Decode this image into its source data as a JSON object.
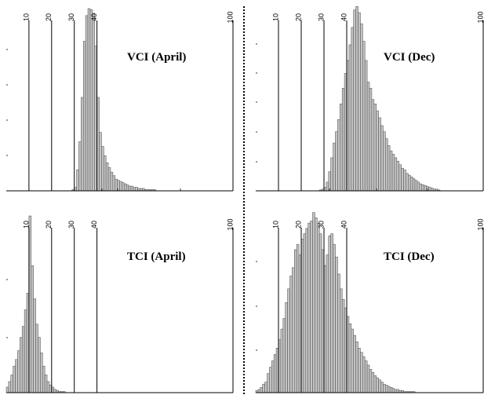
{
  "chart_data": [
    {
      "type": "bar",
      "title": "VCI (April)",
      "xlim": [
        0,
        100
      ],
      "reference_lines": [
        10,
        20,
        30,
        40,
        100
      ],
      "bin_width": 1,
      "x_start": 29,
      "values": [
        1,
        3,
        18,
        42,
        80,
        128,
        150,
        156,
        155,
        152,
        124,
        80,
        50,
        38,
        30,
        24,
        20,
        16,
        13,
        10,
        9,
        8,
        7,
        6,
        5,
        4,
        4,
        3,
        3,
        2,
        2,
        2,
        1,
        1,
        1,
        1,
        1
      ]
    },
    {
      "type": "bar",
      "title": "VCI (Dec)",
      "xlim": [
        0,
        100
      ],
      "reference_lines": [
        10,
        20,
        30,
        40,
        100
      ],
      "bin_width": 1,
      "x_start": 28,
      "values": [
        1,
        2,
        4,
        10,
        22,
        38,
        55,
        68,
        82,
        100,
        118,
        135,
        150,
        168,
        188,
        208,
        212,
        205,
        192,
        172,
        150,
        125,
        118,
        105,
        100,
        92,
        84,
        75,
        68,
        60,
        52,
        46,
        42,
        38,
        34,
        30,
        26,
        24,
        20,
        18,
        16,
        14,
        12,
        10,
        8,
        7,
        6,
        5,
        4,
        3,
        2,
        2,
        1
      ]
    },
    {
      "type": "bar",
      "title": "TCI (April)",
      "xlim": [
        0,
        100
      ],
      "reference_lines": [
        10,
        20,
        30,
        40,
        100
      ],
      "bin_width": 1,
      "x_start": 0,
      "values": [
        5,
        10,
        16,
        24,
        30,
        38,
        50,
        60,
        75,
        90,
        160,
        115,
        85,
        62,
        50,
        36,
        24,
        16,
        10,
        7,
        5,
        3,
        2,
        1,
        1,
        1
      ]
    },
    {
      "type": "bar",
      "title": "TCI (Dec)",
      "xlim": [
        0,
        100
      ],
      "reference_lines": [
        10,
        20,
        30,
        40,
        100
      ],
      "bin_width": 1,
      "x_start": 0,
      "values": [
        2,
        3,
        5,
        8,
        10,
        18,
        24,
        30,
        36,
        42,
        50,
        60,
        70,
        85,
        98,
        110,
        118,
        135,
        140,
        130,
        145,
        150,
        155,
        160,
        162,
        170,
        165,
        160,
        150,
        135,
        120,
        130,
        148,
        150,
        140,
        128,
        112,
        98,
        88,
        80,
        72,
        65,
        60,
        54,
        48,
        42,
        38,
        34,
        30,
        26,
        22,
        19,
        16,
        14,
        12,
        10,
        8,
        7,
        6,
        5,
        4,
        3,
        3,
        2,
        2,
        1,
        1,
        1,
        1,
        1
      ]
    }
  ]
}
